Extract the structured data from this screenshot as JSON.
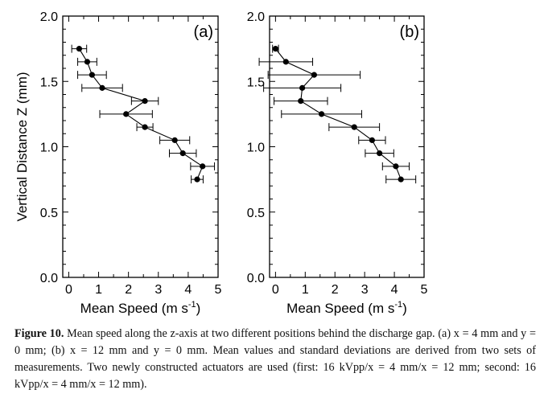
{
  "figure": {
    "caption_label": "Figure 10.",
    "caption_text": "Mean speed along the z-axis at two different positions behind the discharge gap. (a) x = 4 mm and y = 0 mm; (b) x = 12 mm and y = 0 mm. Mean values and standard deviations are derived from two sets of measurements. Two newly constructed actuators are used (first: 16 kVpp/x = 4 mm/x = 12 mm; second: 16 kVpp/x = 4 mm/x = 12 mm)."
  },
  "chart_data": [
    {
      "type": "scatter",
      "panel_label": "(a)",
      "xlabel": "Mean Speed (m s-1)",
      "ylabel": "Vertical Distance Z (mm)",
      "xlim": [
        -0.2,
        5.0
      ],
      "ylim": [
        0.0,
        2.0
      ],
      "x_ticks": [
        "0",
        "1",
        "2",
        "3",
        "4",
        "5"
      ],
      "y_ticks": [
        "0.0",
        "0.5",
        "1.0",
        "1.5",
        "2.0"
      ],
      "markers": "filled-circle-with-line",
      "error_bars": "horizontal",
      "grid": false,
      "points": [
        {
          "z": 1.75,
          "speed": 0.35,
          "err": 0.25
        },
        {
          "z": 1.65,
          "speed": 0.62,
          "err": 0.32
        },
        {
          "z": 1.55,
          "speed": 0.78,
          "err": 0.48
        },
        {
          "z": 1.45,
          "speed": 1.12,
          "err": 0.68
        },
        {
          "z": 1.35,
          "speed": 2.55,
          "err": 0.45
        },
        {
          "z": 1.25,
          "speed": 1.92,
          "err": 0.88
        },
        {
          "z": 1.15,
          "speed": 2.55,
          "err": 0.27
        },
        {
          "z": 1.05,
          "speed": 3.55,
          "err": 0.5
        },
        {
          "z": 0.95,
          "speed": 3.82,
          "err": 0.45
        },
        {
          "z": 0.85,
          "speed": 4.48,
          "err": 0.4
        },
        {
          "z": 0.75,
          "speed": 4.3,
          "err": 0.2
        }
      ]
    },
    {
      "type": "scatter",
      "panel_label": "(b)",
      "xlabel": "Mean Speed (m s-1)",
      "ylabel": "",
      "xlim": [
        -0.2,
        5.0
      ],
      "ylim": [
        0.0,
        2.0
      ],
      "x_ticks": [
        "0",
        "1",
        "2",
        "3",
        "4",
        "5"
      ],
      "y_ticks": [
        "0.0",
        "0.5",
        "1.0",
        "1.5",
        "2.0"
      ],
      "markers": "filled-circle-with-line",
      "error_bars": "horizontal",
      "grid": false,
      "points": [
        {
          "z": 1.75,
          "speed": 0.0,
          "err": 0.1
        },
        {
          "z": 1.65,
          "speed": 0.35,
          "err": 0.9
        },
        {
          "z": 1.55,
          "speed": 1.3,
          "err": 1.55
        },
        {
          "z": 1.45,
          "speed": 0.9,
          "err": 1.3
        },
        {
          "z": 1.35,
          "speed": 0.85,
          "err": 0.9
        },
        {
          "z": 1.25,
          "speed": 1.55,
          "err": 1.35
        },
        {
          "z": 1.15,
          "speed": 2.65,
          "err": 0.85
        },
        {
          "z": 1.05,
          "speed": 3.25,
          "err": 0.45
        },
        {
          "z": 0.95,
          "speed": 3.5,
          "err": 0.48
        },
        {
          "z": 0.85,
          "speed": 4.05,
          "err": 0.45
        },
        {
          "z": 0.75,
          "speed": 4.22,
          "err": 0.5
        }
      ]
    }
  ]
}
